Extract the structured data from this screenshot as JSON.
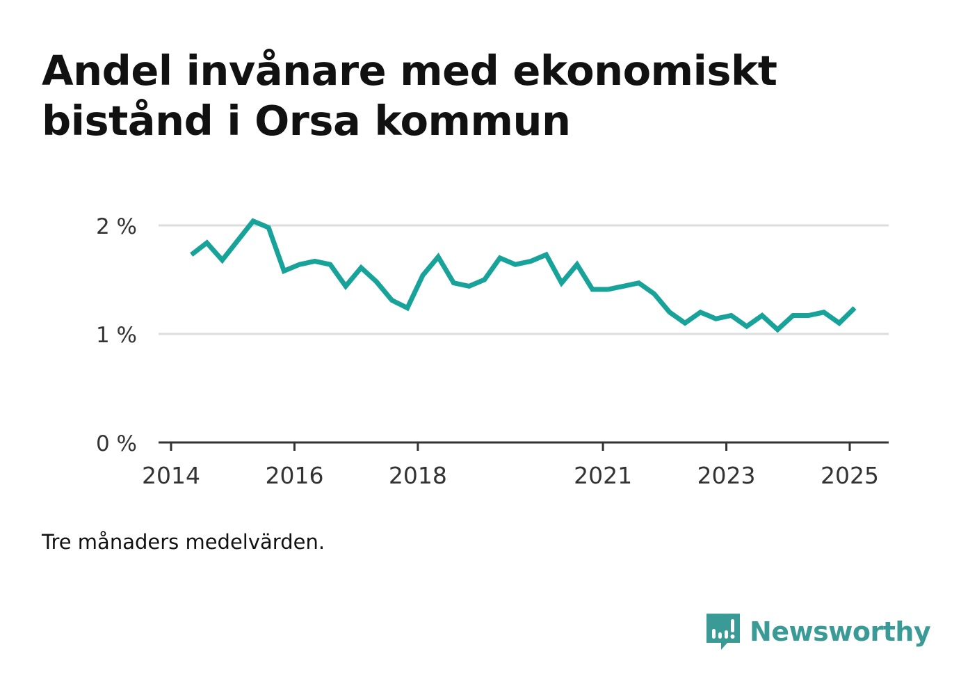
{
  "title": "Andel invånare med ekonomiskt bistånd i Orsa kommun",
  "note": "Tre månaders medelvärden.",
  "brand": "Newsworthy",
  "colors": {
    "line": "#17a39a",
    "grid": "#dddddd",
    "axis": "#333333",
    "brand": "#3a9a96"
  },
  "chart_data": {
    "type": "line",
    "title": "Andel invånare med ekonomiskt bistånd i Orsa kommun",
    "xlabel": "",
    "ylabel": "",
    "xlim": [
      2014.0,
      2025.65
    ],
    "ylim": [
      0,
      2
    ],
    "grid": true,
    "y_ticks": [
      {
        "value": 0,
        "label": "0 %"
      },
      {
        "value": 1,
        "label": "1 %"
      },
      {
        "value": 2,
        "label": "2 %"
      }
    ],
    "x_ticks": [
      {
        "value": 2014.0,
        "label": "2014"
      },
      {
        "value": 2016.0,
        "label": "2016"
      },
      {
        "value": 2018.0,
        "label": "2018"
      },
      {
        "value": 2021.0,
        "label": "2021"
      },
      {
        "value": 2023.0,
        "label": "2023"
      },
      {
        "value": 2025.0,
        "label": "2025"
      }
    ],
    "x": [
      2014.33,
      2014.58,
      2014.83,
      2015.08,
      2015.33,
      2015.58,
      2015.83,
      2016.08,
      2016.33,
      2016.58,
      2016.83,
      2017.08,
      2017.33,
      2017.58,
      2017.83,
      2018.08,
      2018.33,
      2018.58,
      2018.83,
      2019.08,
      2019.33,
      2019.58,
      2019.83,
      2020.08,
      2020.33,
      2020.58,
      2020.83,
      2021.08,
      2021.33,
      2021.58,
      2021.83,
      2022.08,
      2022.33,
      2022.58,
      2022.83,
      2023.08,
      2023.33,
      2023.58,
      2023.83,
      2024.08,
      2024.33,
      2024.58,
      2024.83,
      2025.08
    ],
    "series": [
      {
        "values": [
          1.73,
          1.84,
          1.68,
          1.86,
          2.04,
          1.98,
          1.58,
          1.64,
          1.67,
          1.64,
          1.44,
          1.61,
          1.48,
          1.31,
          1.24,
          1.54,
          1.71,
          1.47,
          1.44,
          1.5,
          1.7,
          1.64,
          1.67,
          1.73,
          1.47,
          1.64,
          1.41,
          1.41,
          1.44,
          1.47,
          1.37,
          1.2,
          1.1,
          1.2,
          1.14,
          1.17,
          1.07,
          1.17,
          1.04,
          1.17,
          1.17,
          1.2,
          1.1,
          1.24
        ]
      }
    ]
  }
}
